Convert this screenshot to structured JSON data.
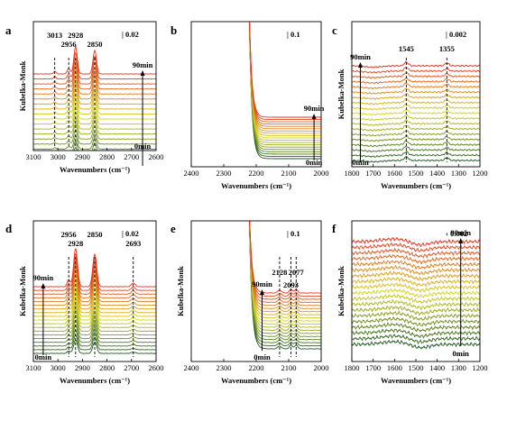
{
  "panels": [
    {
      "id": "a",
      "label": "a",
      "xlim": [
        3100,
        2600
      ],
      "ticks": [
        3100,
        3000,
        2900,
        2800,
        2700,
        2600
      ],
      "xlabel": "Wavenumbers (cm⁻¹)",
      "ylabel": "Kubelka-Monk",
      "scale": "| 0.02",
      "arrow": {
        "x": 2655,
        "top": "90min",
        "bottom": "0min"
      },
      "peaks": [
        {
          "x": 3013,
          "label": "3013"
        },
        {
          "x": 2956,
          "label": "2956"
        },
        {
          "x": 2928,
          "label": "2928"
        },
        {
          "x": 2850,
          "label": "2850"
        }
      ]
    },
    {
      "id": "b",
      "label": "b",
      "xlim": [
        2400,
        2000
      ],
      "ticks": [
        2400,
        2300,
        2200,
        2100,
        2000
      ],
      "xlabel": "Wavenumbers (cm⁻¹)",
      "ylabel": "",
      "scale": "| 0.1",
      "arrow": {
        "x": 2022,
        "top": "90min",
        "bottom": "0min"
      },
      "peaks": []
    },
    {
      "id": "c",
      "label": "c",
      "xlim": [
        1800,
        1200
      ],
      "ticks": [
        1800,
        1700,
        1600,
        1500,
        1400,
        1300,
        1200
      ],
      "xlabel": "Wavenumbers (cm⁻¹)",
      "ylabel": "Kubelka-Monk",
      "scale": "| 0.002",
      "arrow": {
        "x": 1760,
        "top": "90min",
        "bottom": "0min"
      },
      "peaks": [
        {
          "x": 1545,
          "label": "1545"
        },
        {
          "x": 1355,
          "label": "1355"
        }
      ]
    },
    {
      "id": "d",
      "label": "d",
      "xlim": [
        3100,
        2600
      ],
      "ticks": [
        3100,
        3000,
        2900,
        2800,
        2700,
        2600
      ],
      "xlabel": "Wavenumbers (cm⁻¹)",
      "ylabel": "Kubelka-Monk",
      "scale": "| 0.02",
      "arrow": {
        "x": 3060,
        "top": "90min",
        "bottom": "0min"
      },
      "peaks": [
        {
          "x": 2956,
          "label": "2956"
        },
        {
          "x": 2928,
          "label": "2928"
        },
        {
          "x": 2850,
          "label": "2850"
        },
        {
          "x": 2693,
          "label": "2693"
        }
      ]
    },
    {
      "id": "e",
      "label": "e",
      "xlim": [
        2400,
        2000
      ],
      "ticks": [
        2400,
        2300,
        2200,
        2100,
        2000
      ],
      "xlabel": "Wavenumbers (cm⁻¹)",
      "ylabel": "Kubelka-Monk",
      "scale": "| 0.1",
      "arrow": {
        "x": 2182,
        "top": "90min",
        "bottom": "0min"
      },
      "peaks": [
        {
          "x": 2128,
          "label": "2128"
        },
        {
          "x": 2093,
          "label": "2093"
        },
        {
          "x": 2077,
          "label": "2077"
        }
      ]
    },
    {
      "id": "f",
      "label": "f",
      "xlim": [
        1800,
        1200
      ],
      "ticks": [
        1800,
        1700,
        1600,
        1500,
        1400,
        1300,
        1200
      ],
      "xlabel": "Wavenumbers (cm⁻¹)",
      "ylabel": "Kubelka-Monk",
      "scale": "‹ 0.002",
      "arrow": {
        "x": 1290,
        "top": "90min",
        "bottom": "0min"
      },
      "peaks": []
    }
  ],
  "chart_data": [
    {
      "type": "line",
      "panel": "a",
      "series_count": 19,
      "time_range_min": [
        0,
        90
      ],
      "xlim": [
        3100,
        2600
      ],
      "peaks_cm1": [
        3013,
        2956,
        2928,
        2850
      ],
      "colors": [
        "#1e5a1e",
        "#d9d41a",
        "#e8321e"
      ]
    },
    {
      "type": "line",
      "panel": "b",
      "series_count": 19,
      "time_range_min": [
        0,
        90
      ],
      "xlim": [
        2400,
        2000
      ],
      "colors": [
        "#1e5a1e",
        "#d9d41a",
        "#e8321e"
      ]
    },
    {
      "type": "line",
      "panel": "c",
      "series_count": 19,
      "time_range_min": [
        0,
        90
      ],
      "xlim": [
        1800,
        1200
      ],
      "peaks_cm1": [
        1545,
        1355
      ],
      "colors": [
        "#1e5a1e",
        "#d9d41a",
        "#e8321e"
      ]
    },
    {
      "type": "line",
      "panel": "d",
      "series_count": 19,
      "time_range_min": [
        0,
        90
      ],
      "xlim": [
        3100,
        2600
      ],
      "peaks_cm1": [
        2956,
        2928,
        2850,
        2693
      ],
      "colors": [
        "#1e5a1e",
        "#d9d41a",
        "#e8321e"
      ]
    },
    {
      "type": "line",
      "panel": "e",
      "series_count": 19,
      "time_range_min": [
        0,
        90
      ],
      "xlim": [
        2400,
        2000
      ],
      "peaks_cm1": [
        2128,
        2093,
        2077
      ],
      "colors": [
        "#1e5a1e",
        "#d9d41a",
        "#e8321e"
      ]
    },
    {
      "type": "line",
      "panel": "f",
      "series_count": 19,
      "time_range_min": [
        0,
        90
      ],
      "xlim": [
        1800,
        1200
      ],
      "colors": [
        "#1e5a1e",
        "#d9d41a",
        "#e8321e"
      ]
    }
  ]
}
